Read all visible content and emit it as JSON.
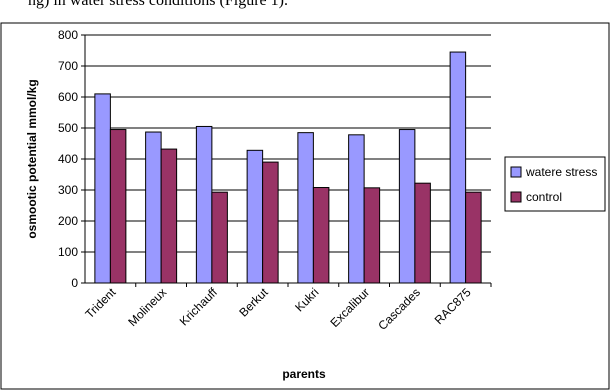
{
  "caption_fragment": "ng) in water stress conditions (Figure 1).",
  "chart_data": {
    "type": "bar",
    "categories": [
      "Trident",
      "Molineux",
      "Krichauff",
      "Berkut",
      "Kukri",
      "Excalibur",
      "Cascades",
      "RAC875"
    ],
    "series": [
      {
        "name": "watere stress",
        "color": "#9999ff",
        "values": [
          610,
          487,
          505,
          428,
          485,
          478,
          495,
          745
        ]
      },
      {
        "name": "control",
        "color": "#993366",
        "values": [
          495,
          432,
          293,
          390,
          308,
          307,
          322,
          293
        ]
      }
    ],
    "xlabel": "parents",
    "ylabel": "osmootic potential mmol/kg",
    "ylim": [
      0,
      800
    ],
    "yticks": [
      0,
      100,
      200,
      300,
      400,
      500,
      600,
      700,
      800
    ],
    "grid": true,
    "legend": "right"
  }
}
